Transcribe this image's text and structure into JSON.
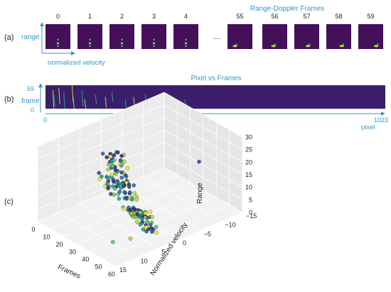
{
  "colors": {
    "accent": "#3a95c4",
    "frame_bg": "#44105a",
    "heatmap_bg": "#3b1e6b",
    "bright_point": "#b8de29",
    "mid_point": "#21a685",
    "grid": "#d8d8d8"
  },
  "panel_a": {
    "label": "(a)",
    "title": "Range-Doppler Frames",
    "y_axis_label": "range",
    "x_axis_label": "normalized velocity",
    "ellipsis": "…",
    "frames_left": [
      "0",
      "1",
      "2",
      "3",
      "4"
    ],
    "frames_right": [
      "55",
      "56",
      "57",
      "58",
      "59"
    ]
  },
  "panel_b": {
    "label": "(b)",
    "title": "Pixel vs Frames",
    "y_axis_label": "frame",
    "y_tick_top": "59",
    "y_tick_bottom": "0",
    "x_tick_left": "0",
    "x_tick_right": "1023",
    "x_axis_label": "pixel"
  },
  "panel_c": {
    "label": "(c)",
    "chart_data": {
      "type": "scatter",
      "projection": "3d",
      "x_label": "Frames",
      "y_label": "Normalized velocity",
      "z_label": "Range",
      "x_ticks": [
        "0",
        "10",
        "20",
        "30",
        "40",
        "50",
        "60"
      ],
      "y_ticks": [
        "15",
        "10",
        "5",
        "0",
        "−5",
        "−10",
        "−15"
      ],
      "z_ticks": [
        "0",
        "5",
        "10",
        "15",
        "20",
        "25",
        "30"
      ],
      "xlim": [
        0,
        60
      ],
      "ylim": [
        -15,
        15
      ],
      "zlim": [
        0,
        30
      ],
      "grid": true
    }
  }
}
